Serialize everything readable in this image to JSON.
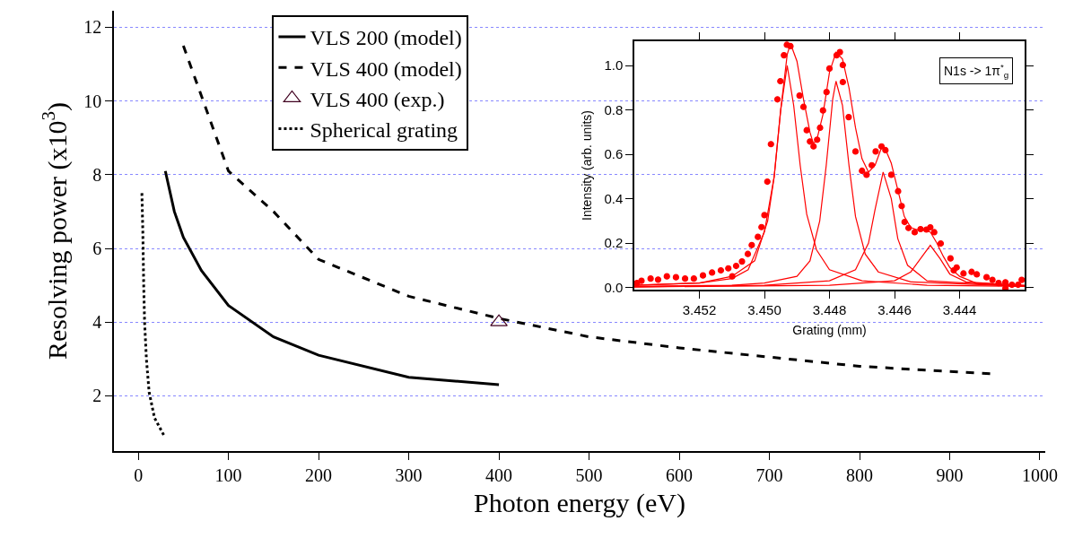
{
  "chart_data": [
    {
      "type": "line",
      "xlabel": "Photon energy (eV)",
      "ylabel": "Resolving power (x10$^{3}$)",
      "xlim": [
        -27,
        1006
      ],
      "ylim": [
        0.5,
        12.45
      ],
      "xticks": [
        0,
        100,
        200,
        300,
        400,
        500,
        600,
        700,
        800,
        900,
        1000
      ],
      "yticks": [
        2,
        4,
        6,
        8,
        10,
        12
      ],
      "grid": "y",
      "legend": "top left",
      "series": [
        {
          "name": "VLS 200 (model)",
          "color": "#000000",
          "line_style": "solid",
          "x": [
            30,
            40,
            50,
            70,
            100,
            150,
            200,
            300,
            400
          ],
          "values": [
            8.1,
            7.0,
            6.3,
            5.4,
            4.45,
            3.6,
            3.1,
            2.5,
            2.3
          ]
        },
        {
          "name": "VLS 400 (model)",
          "color": "#000000",
          "line_style": "dashed",
          "x": [
            50,
            100,
            150,
            200,
            300,
            400,
            500,
            600,
            700,
            800,
            945
          ],
          "values": [
            11.5,
            8.1,
            7.0,
            5.7,
            4.7,
            4.1,
            3.6,
            3.3,
            3.05,
            2.8,
            2.6
          ]
        },
        {
          "name": "VLS 400 (exp.)",
          "type": "scatter",
          "marker": "triangle",
          "color": "#400020",
          "x": [
            400
          ],
          "values": [
            4.0
          ]
        },
        {
          "name": "Spherical grating",
          "color": "#000000",
          "line_style": "dotted",
          "x": [
            4,
            5,
            6,
            7,
            9,
            12,
            18,
            29
          ],
          "values": [
            7.5,
            6.5,
            5.0,
            4.0,
            3.0,
            2.1,
            1.4,
            0.9
          ]
        }
      ]
    },
    {
      "type": "line",
      "xlabel": "Grating (mm)",
      "ylabel": "Intensity (arb. units)",
      "xlim": [
        3.454,
        3.442
      ],
      "ylim": [
        -0.01,
        1.11
      ],
      "xticks": [
        3.452,
        {
          "value": 3.45,
          "label": "3.450"
        },
        3.448,
        3.446,
        3.444
      ],
      "yticks": [
        {
          "value": 0,
          "label": "0.0"
        },
        0.2,
        0.4,
        0.6,
        0.8,
        {
          "value": 1,
          "label": "1.0"
        }
      ],
      "annotations": [
        "N1s -> 1π$^{*}$$_{g}$"
      ],
      "series": [
        {
          "type": "scatter",
          "marker": "circle",
          "color": "#ff0000",
          "x": [
            3.45392,
            3.45378,
            3.4535,
            3.45327,
            3.453,
            3.45272,
            3.45244,
            3.45217,
            3.45189,
            3.45161,
            3.45134,
            3.45111,
            3.45099,
            3.45087,
            3.45069,
            3.45051,
            3.45039,
            3.4502,
            3.45009,
            3.45,
            3.44991,
            3.4498,
            3.4496,
            3.44951,
            3.4494,
            3.44931,
            3.4492,
            3.44892,
            3.4488,
            3.4487,
            3.4486,
            3.44849,
            3.44838,
            3.44829,
            3.4482,
            3.44809,
            3.448,
            3.44778,
            3.44768,
            3.44759,
            3.44759,
            3.44741,
            3.4472,
            3.447,
            3.44686,
            3.4467,
            3.44658,
            3.4464,
            3.44628,
            3.4461,
            3.44589,
            3.44578,
            3.44569,
            3.44557,
            3.44538,
            3.4452,
            3.44502,
            3.4449,
            3.44478,
            3.44458,
            3.44428,
            3.44418,
            3.44409,
            3.44388,
            3.44363,
            3.44347,
            3.44317,
            3.44299,
            3.4428,
            3.44259,
            3.44259,
            3.44239,
            3.4422,
            3.44209
          ],
          "values": [
            0.02,
            0.03,
            0.04,
            0.035,
            0.05,
            0.046,
            0.04,
            0.04,
            0.054,
            0.067,
            0.077,
            0.086,
            0.05,
            0.097,
            0.117,
            0.151,
            0.191,
            0.228,
            0.272,
            0.326,
            0.477,
            0.646,
            0.848,
            0.93,
            1.047,
            1.094,
            1.088,
            0.865,
            0.814,
            0.709,
            0.658,
            0.636,
            0.666,
            0.72,
            0.798,
            0.881,
            0.987,
            1.047,
            1.061,
            1.003,
            0.926,
            0.768,
            0.613,
            0.526,
            0.508,
            0.551,
            0.613,
            0.636,
            0.619,
            0.508,
            0.434,
            0.367,
            0.295,
            0.268,
            0.249,
            0.263,
            0.261,
            0.271,
            0.249,
            0.198,
            0.131,
            0.077,
            0.09,
            0.063,
            0.07,
            0.059,
            0.046,
            0.034,
            0.02,
            0.023,
            -0.004,
            0.012,
            0.012,
            0.034
          ]
        },
        {
          "color": "#ff0000",
          "line_style": "solid",
          "x": [
            3.454,
            3.452,
            3.451,
            3.4505,
            3.45,
            3.4497,
            3.4495,
            3.4493,
            3.4492,
            3.449,
            3.4488,
            3.4486,
            3.4485,
            3.4484,
            3.4482,
            3.448,
            3.4478,
            3.4476,
            3.4474,
            3.4472,
            3.447,
            3.4468,
            3.4466,
            3.4464,
            3.4463,
            3.4461,
            3.4459,
            3.4457,
            3.4455,
            3.4453,
            3.4451,
            3.4449,
            3.4447,
            3.4445,
            3.4443,
            3.444,
            3.4435,
            3.442
          ],
          "values": [
            0.01,
            0.02,
            0.04,
            0.08,
            0.25,
            0.5,
            0.8,
            1.05,
            1.1,
            1.02,
            0.85,
            0.7,
            0.65,
            0.66,
            0.78,
            0.97,
            1.06,
            1.03,
            0.9,
            0.72,
            0.58,
            0.52,
            0.55,
            0.63,
            0.63,
            0.56,
            0.44,
            0.32,
            0.27,
            0.26,
            0.26,
            0.25,
            0.2,
            0.14,
            0.09,
            0.05,
            0.02,
            0.01
          ]
        },
        {
          "color": "#ff0000",
          "line_style": "solid",
          "x": [
            3.454,
            3.452,
            3.451,
            3.4503,
            3.4499,
            3.4497,
            3.4495,
            3.4493,
            3.4491,
            3.4489,
            3.4487,
            3.4484,
            3.448,
            3.447,
            3.445,
            3.442
          ],
          "values": [
            0.01,
            0.02,
            0.05,
            0.12,
            0.3,
            0.5,
            0.8,
            1.0,
            0.82,
            0.55,
            0.33,
            0.17,
            0.08,
            0.03,
            0.01,
            0.005
          ]
        },
        {
          "color": "#ff0000",
          "line_style": "solid",
          "x": [
            3.454,
            3.451,
            3.45,
            3.449,
            3.4486,
            3.4483,
            3.4481,
            3.4479,
            3.4478,
            3.4476,
            3.4474,
            3.4472,
            3.4469,
            3.4465,
            3.4455,
            3.442
          ],
          "values": [
            0.005,
            0.01,
            0.02,
            0.05,
            0.12,
            0.3,
            0.55,
            0.85,
            0.93,
            0.82,
            0.55,
            0.32,
            0.15,
            0.07,
            0.025,
            0.005
          ]
        },
        {
          "color": "#ff0000",
          "line_style": "solid",
          "x": [
            3.454,
            3.45,
            3.448,
            3.4472,
            3.4468,
            3.4466,
            3.44635,
            3.4461,
            3.4459,
            3.4456,
            3.445,
            3.442
          ],
          "values": [
            0.003,
            0.01,
            0.03,
            0.08,
            0.2,
            0.35,
            0.52,
            0.4,
            0.22,
            0.1,
            0.03,
            0.005
          ]
        },
        {
          "color": "#ff0000",
          "line_style": "solid",
          "x": [
            3.454,
            3.448,
            3.446,
            3.4455,
            3.4452,
            3.4449,
            3.4446,
            3.4443,
            3.4438,
            3.442
          ],
          "values": [
            0.002,
            0.01,
            0.03,
            0.07,
            0.13,
            0.19,
            0.13,
            0.06,
            0.025,
            0.008
          ]
        }
      ]
    }
  ]
}
